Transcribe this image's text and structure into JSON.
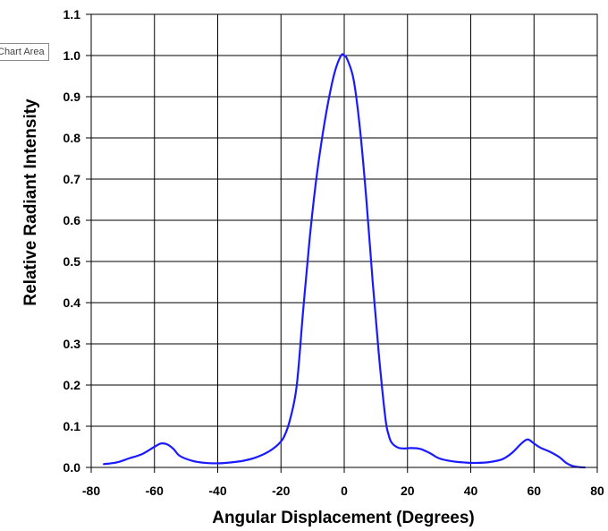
{
  "tooltip": "Chart Area",
  "chart_data": {
    "type": "line",
    "title": "",
    "xlabel": "Angular Displacement (Degrees)",
    "ylabel": "Relative Radiant Intensity",
    "xlim": [
      -80,
      80
    ],
    "ylim": [
      0.0,
      1.1
    ],
    "xticks": [
      -80,
      -60,
      -40,
      -20,
      0,
      20,
      40,
      60,
      80
    ],
    "xtick_labels": [
      "-80",
      "-60",
      "-40",
      "-20",
      "0",
      "20",
      "40",
      "60",
      "80"
    ],
    "yticks": [
      0.0,
      0.1,
      0.2,
      0.3,
      0.4,
      0.5,
      0.6,
      0.7,
      0.8,
      0.9,
      1.0,
      1.1
    ],
    "ytick_labels": [
      "0.0",
      "0.1",
      "0.2",
      "0.3",
      "0.4",
      "0.5",
      "0.6",
      "0.7",
      "0.8",
      "0.9",
      "1.0",
      "1.1"
    ],
    "grid": true,
    "legend": "none",
    "series": [
      {
        "color": "#1a1aff",
        "x": [
          -76,
          -72,
          -68,
          -64,
          -60,
          -58,
          -56,
          -54,
          -52,
          -48,
          -44,
          -40,
          -36,
          -32,
          -28,
          -24,
          -21,
          -19,
          -17,
          -15,
          -13,
          -11,
          -9,
          -7,
          -5,
          -3,
          -1,
          0,
          1,
          3,
          5,
          7,
          9,
          11,
          13,
          14,
          15,
          17,
          19,
          21,
          24,
          27,
          30,
          34,
          38,
          42,
          46,
          50,
          53,
          56,
          58,
          60,
          62,
          65,
          68,
          70,
          72,
          74,
          76
        ],
        "y": [
          0.008,
          0.012,
          0.022,
          0.032,
          0.05,
          0.058,
          0.056,
          0.045,
          0.028,
          0.016,
          0.011,
          0.01,
          0.012,
          0.016,
          0.024,
          0.038,
          0.055,
          0.075,
          0.12,
          0.2,
          0.38,
          0.55,
          0.69,
          0.8,
          0.89,
          0.96,
          1.0,
          1.0,
          0.99,
          0.94,
          0.82,
          0.65,
          0.45,
          0.27,
          0.12,
          0.08,
          0.06,
          0.048,
          0.046,
          0.047,
          0.045,
          0.035,
          0.022,
          0.015,
          0.012,
          0.011,
          0.013,
          0.02,
          0.035,
          0.058,
          0.068,
          0.058,
          0.048,
          0.038,
          0.025,
          0.012,
          0.004,
          0.001,
          0.0
        ]
      }
    ]
  }
}
